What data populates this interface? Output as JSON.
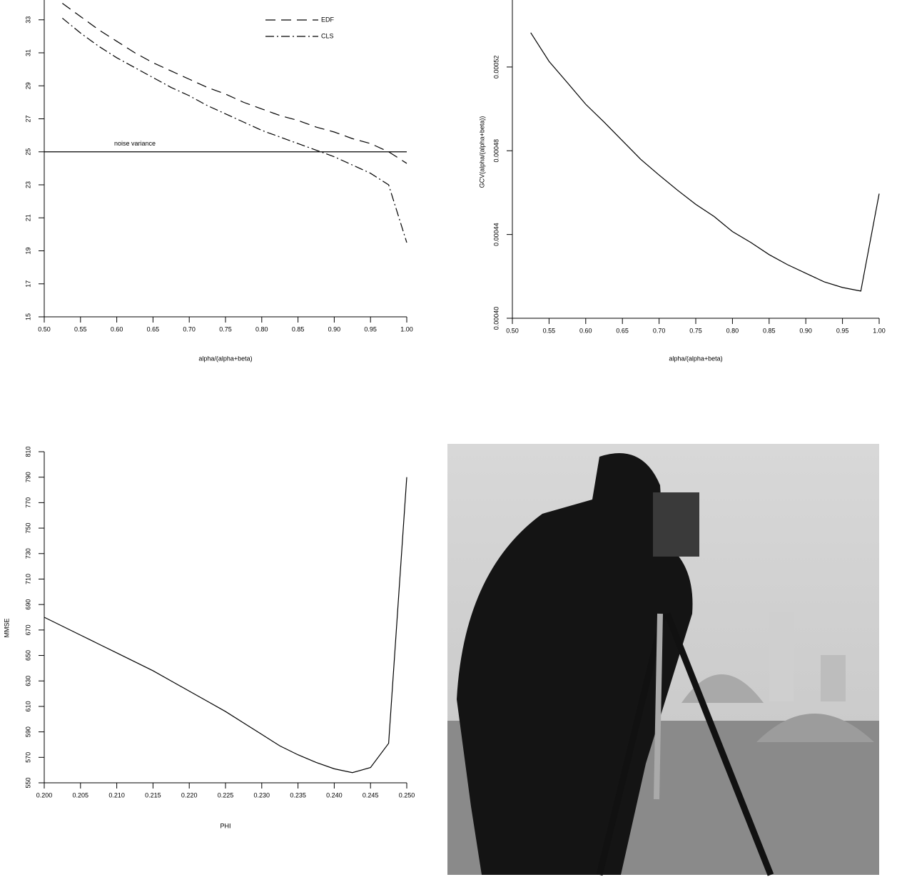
{
  "chart_data": [
    {
      "type": "line",
      "x": [
        0.525,
        0.55,
        0.575,
        0.6,
        0.625,
        0.65,
        0.675,
        0.7,
        0.725,
        0.75,
        0.775,
        0.8,
        0.825,
        0.85,
        0.875,
        0.9,
        0.925,
        0.95,
        0.975,
        1.0
      ],
      "series": [
        {
          "name": "EDF",
          "color": "#000000",
          "style": "dashed",
          "values": [
            34.0,
            33.2,
            32.4,
            31.7,
            31.0,
            30.4,
            29.9,
            29.4,
            28.9,
            28.5,
            28.0,
            27.6,
            27.2,
            26.9,
            26.5,
            26.2,
            25.8,
            25.5,
            25.0,
            24.3
          ]
        },
        {
          "name": "CLS",
          "color": "#000000",
          "style": "dashdot",
          "values": [
            33.1,
            32.2,
            31.4,
            30.7,
            30.1,
            29.5,
            28.9,
            28.4,
            27.8,
            27.3,
            26.8,
            26.3,
            25.9,
            25.5,
            25.1,
            24.7,
            24.2,
            23.7,
            23.0,
            19.5
          ]
        }
      ],
      "hline": {
        "value": 25,
        "label": "noise variance"
      },
      "xlabel": "alpha/(alpha+beta)",
      "xlim": [
        0.5,
        1.0
      ],
      "xticks": [
        {
          "value": 0.5,
          "label": "0.50"
        },
        {
          "value": 0.55,
          "label": "0.55"
        },
        {
          "value": 0.6,
          "label": "0.60"
        },
        {
          "value": 0.65,
          "label": "0.65"
        },
        {
          "value": 0.7,
          "label": "0.70"
        },
        {
          "value": 0.75,
          "label": "0.75"
        },
        {
          "value": 0.8,
          "label": "0.80"
        },
        {
          "value": 0.85,
          "label": "0.85"
        },
        {
          "value": 0.9,
          "label": "0.90"
        },
        {
          "value": 0.95,
          "label": "0.95"
        },
        {
          "value": 1.0,
          "label": "1.00"
        }
      ],
      "ylim": [
        15,
        34.2
      ],
      "yticks": [
        15,
        17,
        19,
        21,
        23,
        25,
        27,
        29,
        31,
        33
      ],
      "legend": "top-right"
    },
    {
      "type": "line",
      "x": [
        0.525,
        0.55,
        0.575,
        0.6,
        0.625,
        0.65,
        0.675,
        0.7,
        0.725,
        0.75,
        0.775,
        0.8,
        0.825,
        0.85,
        0.875,
        0.9,
        0.925,
        0.95,
        0.975,
        1.0
      ],
      "series": [
        {
          "color": "#000000",
          "style": "solid",
          "values": [
            0.0005364,
            0.0005227,
            0.0005125,
            0.0005022,
            0.0004937,
            0.0004848,
            0.0004759,
            0.0004684,
            0.0004612,
            0.0004544,
            0.0004486,
            0.0004414,
            0.0004362,
            0.0004304,
            0.0004256,
            0.0004215,
            0.0004174,
            0.0004147,
            0.000413,
            0.0004595
          ]
        }
      ],
      "xlabel": "alpha/(alpha+beta)",
      "ylabel": "GCV(alpha/(alpha+beta))",
      "xlim": [
        0.5,
        1.0
      ],
      "xticks": [
        {
          "value": 0.5,
          "label": "0.50"
        },
        {
          "value": 0.55,
          "label": "0.55"
        },
        {
          "value": 0.6,
          "label": "0.60"
        },
        {
          "value": 0.65,
          "label": "0.65"
        },
        {
          "value": 0.7,
          "label": "0.70"
        },
        {
          "value": 0.75,
          "label": "0.75"
        },
        {
          "value": 0.8,
          "label": "0.80"
        },
        {
          "value": 0.85,
          "label": "0.85"
        },
        {
          "value": 0.9,
          "label": "0.90"
        },
        {
          "value": 0.95,
          "label": "0.95"
        },
        {
          "value": 1.0,
          "label": "1.00"
        }
      ],
      "ylim": [
        0.0004,
        0.000552
      ],
      "yticks": [
        {
          "value": 0.0004,
          "label": "0.00040"
        },
        {
          "value": 0.00044,
          "label": "0.00044"
        },
        {
          "value": 0.00048,
          "label": "0.00048"
        },
        {
          "value": 0.00052,
          "label": "0.00052"
        }
      ]
    },
    {
      "type": "line",
      "x": [
        0.2,
        0.2025,
        0.205,
        0.2075,
        0.21,
        0.2125,
        0.215,
        0.2175,
        0.22,
        0.2225,
        0.225,
        0.2275,
        0.23,
        0.2325,
        0.235,
        0.2375,
        0.24,
        0.2425,
        0.245,
        0.2475,
        0.25
      ],
      "series": [
        {
          "color": "#000000",
          "style": "solid",
          "values": [
            680,
            673,
            666,
            659,
            652,
            645,
            638,
            630,
            622,
            614,
            606,
            597,
            588,
            579,
            572,
            566,
            561,
            558,
            562,
            581,
            790
          ]
        }
      ],
      "xlabel": "PHI",
      "ylabel": "MMSE",
      "xlim": [
        0.2,
        0.25
      ],
      "xticks": [
        {
          "value": 0.2,
          "label": "0.200"
        },
        {
          "value": 0.205,
          "label": "0.205"
        },
        {
          "value": 0.21,
          "label": "0.210"
        },
        {
          "value": 0.215,
          "label": "0.215"
        },
        {
          "value": 0.22,
          "label": "0.220"
        },
        {
          "value": 0.225,
          "label": "0.225"
        },
        {
          "value": 0.23,
          "label": "0.230"
        },
        {
          "value": 0.235,
          "label": "0.235"
        },
        {
          "value": 0.24,
          "label": "0.240"
        },
        {
          "value": 0.245,
          "label": "0.245"
        },
        {
          "value": 0.25,
          "label": "0.250"
        }
      ],
      "ylim": [
        550,
        810
      ],
      "yticks": [
        550,
        570,
        590,
        610,
        630,
        650,
        670,
        690,
        710,
        730,
        750,
        770,
        790,
        810
      ]
    }
  ]
}
